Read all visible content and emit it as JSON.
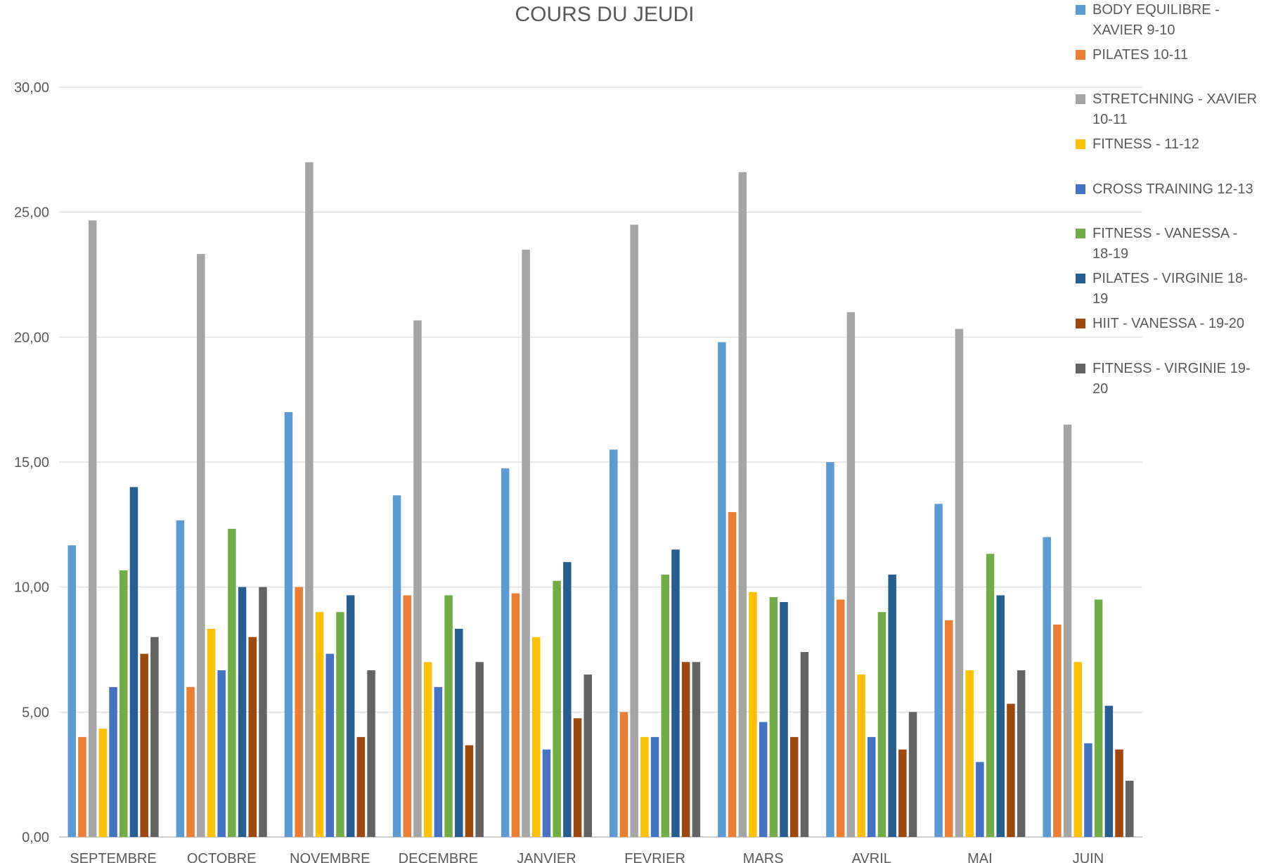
{
  "chart_data": {
    "type": "bar",
    "title": "COURS DU JEUDI",
    "xlabel": "",
    "ylabel": "",
    "ylim": [
      0,
      30
    ],
    "yticks": [
      "0,00",
      "5,00",
      "10,00",
      "15,00",
      "20,00",
      "25,00",
      "30,00"
    ],
    "grid": true,
    "legend_position": "right",
    "categories": [
      "SEPTEMBRE",
      "OCTOBRE",
      "NOVEMBRE",
      "DECEMBRE",
      "JANVIER",
      "FEVRIER",
      "MARS",
      "AVRIL",
      "MAI",
      "JUIN"
    ],
    "series": [
      {
        "name": "BODY EQUILIBRE - XAVIER 9-10",
        "color": "#5B9BD5",
        "values": [
          11.67,
          12.67,
          17.0,
          13.67,
          14.75,
          15.5,
          19.8,
          15.0,
          13.33,
          12.0
        ]
      },
      {
        "name": "PILATES 10-11",
        "color": "#ED7D31",
        "values": [
          4.0,
          6.0,
          10.0,
          9.67,
          9.75,
          5.0,
          13.0,
          9.5,
          8.67,
          8.5
        ]
      },
      {
        "name": "STRETCHNING - XAVIER 10-11",
        "color": "#A5A5A5",
        "values": [
          24.67,
          23.33,
          27.0,
          20.67,
          23.5,
          24.5,
          26.6,
          21.0,
          20.33,
          16.5
        ]
      },
      {
        "name": "FITNESS - 11-12",
        "color": "#FFC000",
        "values": [
          4.33,
          8.33,
          9.0,
          7.0,
          8.0,
          4.0,
          9.8,
          6.5,
          6.67,
          7.0
        ]
      },
      {
        "name": "CROSS TRAINING 12-13",
        "color": "#4472C4",
        "values": [
          6.0,
          6.67,
          7.33,
          6.0,
          3.5,
          4.0,
          4.6,
          4.0,
          3.0,
          3.75
        ]
      },
      {
        "name": "FITNESS - VANESSA - 18-19",
        "color": "#70AD47",
        "values": [
          10.67,
          12.33,
          9.0,
          9.67,
          10.25,
          10.5,
          9.6,
          9.0,
          11.33,
          9.5
        ]
      },
      {
        "name": "PILATES - VIRGINIE 18-19",
        "color": "#255E91",
        "values": [
          14.0,
          10.0,
          9.67,
          8.33,
          11.0,
          11.5,
          9.4,
          10.5,
          9.67,
          5.25
        ]
      },
      {
        "name": "HIIT - VANESSA - 19-20",
        "color": "#9E480E",
        "values": [
          7.33,
          8.0,
          4.0,
          3.67,
          4.75,
          7.0,
          4.0,
          3.5,
          5.33,
          3.5
        ]
      },
      {
        "name": "FITNESS - VIRGINIE 19-20",
        "color": "#636363",
        "values": [
          8.0,
          10.0,
          6.67,
          7.0,
          6.5,
          7.0,
          7.4,
          5.0,
          6.67,
          2.25
        ]
      }
    ]
  }
}
